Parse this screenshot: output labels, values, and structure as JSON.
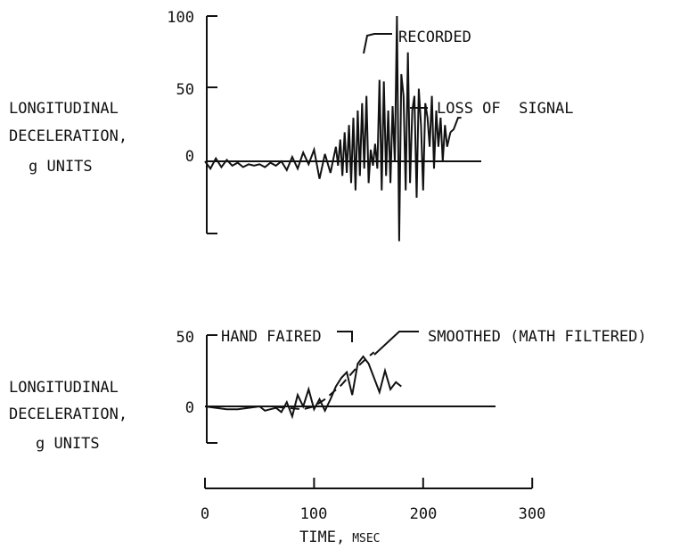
{
  "chart_data": [
    {
      "type": "line",
      "ylabel": [
        "LONGITUDINAL",
        "DECELERATION,",
        "g UNITS"
      ],
      "y_ticks": [
        100,
        50,
        0
      ],
      "ylim": [
        -60,
        100
      ],
      "xlim": [
        0,
        300
      ],
      "grid": false,
      "annotations": [
        "RECORDED",
        "LOSS OF  SIGNAL"
      ],
      "series": [
        {
          "x": [
            0,
            5,
            10,
            15,
            20,
            25,
            30,
            35,
            40,
            45,
            50,
            55,
            60,
            65,
            70,
            75,
            80,
            85,
            90,
            95,
            100,
            105,
            110,
            115,
            120,
            122,
            124,
            126,
            128,
            130,
            132,
            134,
            136,
            138,
            140,
            142,
            144,
            146,
            148,
            150,
            152,
            154,
            156,
            158,
            160,
            162,
            164,
            166,
            168,
            170,
            172,
            174,
            176,
            178,
            180,
            182,
            184,
            186,
            188,
            190,
            192,
            194,
            196,
            198,
            200,
            202,
            204,
            206,
            208,
            210,
            212,
            214,
            216,
            218,
            220,
            222,
            225
          ],
          "values": [
            0,
            -5,
            2,
            -4,
            1,
            -3,
            -1,
            -4,
            -2,
            -3,
            -2,
            -4,
            -1,
            -3,
            0,
            -6,
            3,
            -5,
            6,
            -2,
            8,
            -12,
            5,
            -8,
            10,
            -3,
            15,
            -10,
            20,
            -8,
            25,
            -15,
            30,
            -20,
            35,
            -10,
            40,
            -5,
            45,
            -15,
            8,
            -3,
            12,
            -5,
            56,
            -20,
            55,
            -10,
            35,
            -15,
            38,
            0,
            100,
            -55,
            60,
            45,
            -20,
            75,
            -15,
            35,
            45,
            -25,
            50,
            25,
            -20,
            40,
            30,
            10,
            45,
            -5,
            35,
            10,
            30,
            0,
            25,
            10,
            20
          ]
        },
        {
          "x": [
            225,
            228,
            230,
            232,
            235
          ],
          "values": [
            20,
            22,
            26,
            30,
            30
          ]
        }
      ]
    },
    {
      "type": "line",
      "ylabel": [
        "LONGITUDINAL",
        "DECELERATION,",
        "g UNITS"
      ],
      "y_ticks": [
        50,
        0
      ],
      "ylim": [
        -35,
        50
      ],
      "xlim": [
        0,
        300
      ],
      "x_ticks": [
        0,
        100,
        200,
        300
      ],
      "xlabel": "TIME,",
      "xlabel_unit": "MSEC",
      "grid": false,
      "annotations": [
        "HAND FAIRED",
        "SMOOTHED (MATH FILTERED)"
      ],
      "series": [
        {
          "x": [
            0,
            10,
            20,
            30,
            40,
            50,
            55,
            60,
            65,
            70,
            75,
            80,
            85,
            90,
            95,
            100,
            105,
            110,
            115,
            120,
            125,
            130,
            135,
            140,
            145,
            150,
            155,
            160,
            165,
            170,
            175,
            180
          ],
          "values": [
            0,
            -1,
            -2,
            -2,
            -1,
            0,
            -3,
            -2,
            -1,
            -4,
            3,
            -7,
            8,
            0,
            12,
            -2,
            5,
            -3,
            5,
            14,
            20,
            24,
            8,
            30,
            35,
            30,
            20,
            10,
            25,
            12,
            17,
            14
          ]
        },
        {
          "x": [
            0,
            30,
            60,
            90,
            100,
            110,
            125,
            140,
            150,
            155
          ],
          "values": [
            0,
            0,
            0,
            -2,
            0,
            5,
            15,
            28,
            35,
            38
          ]
        }
      ]
    }
  ]
}
